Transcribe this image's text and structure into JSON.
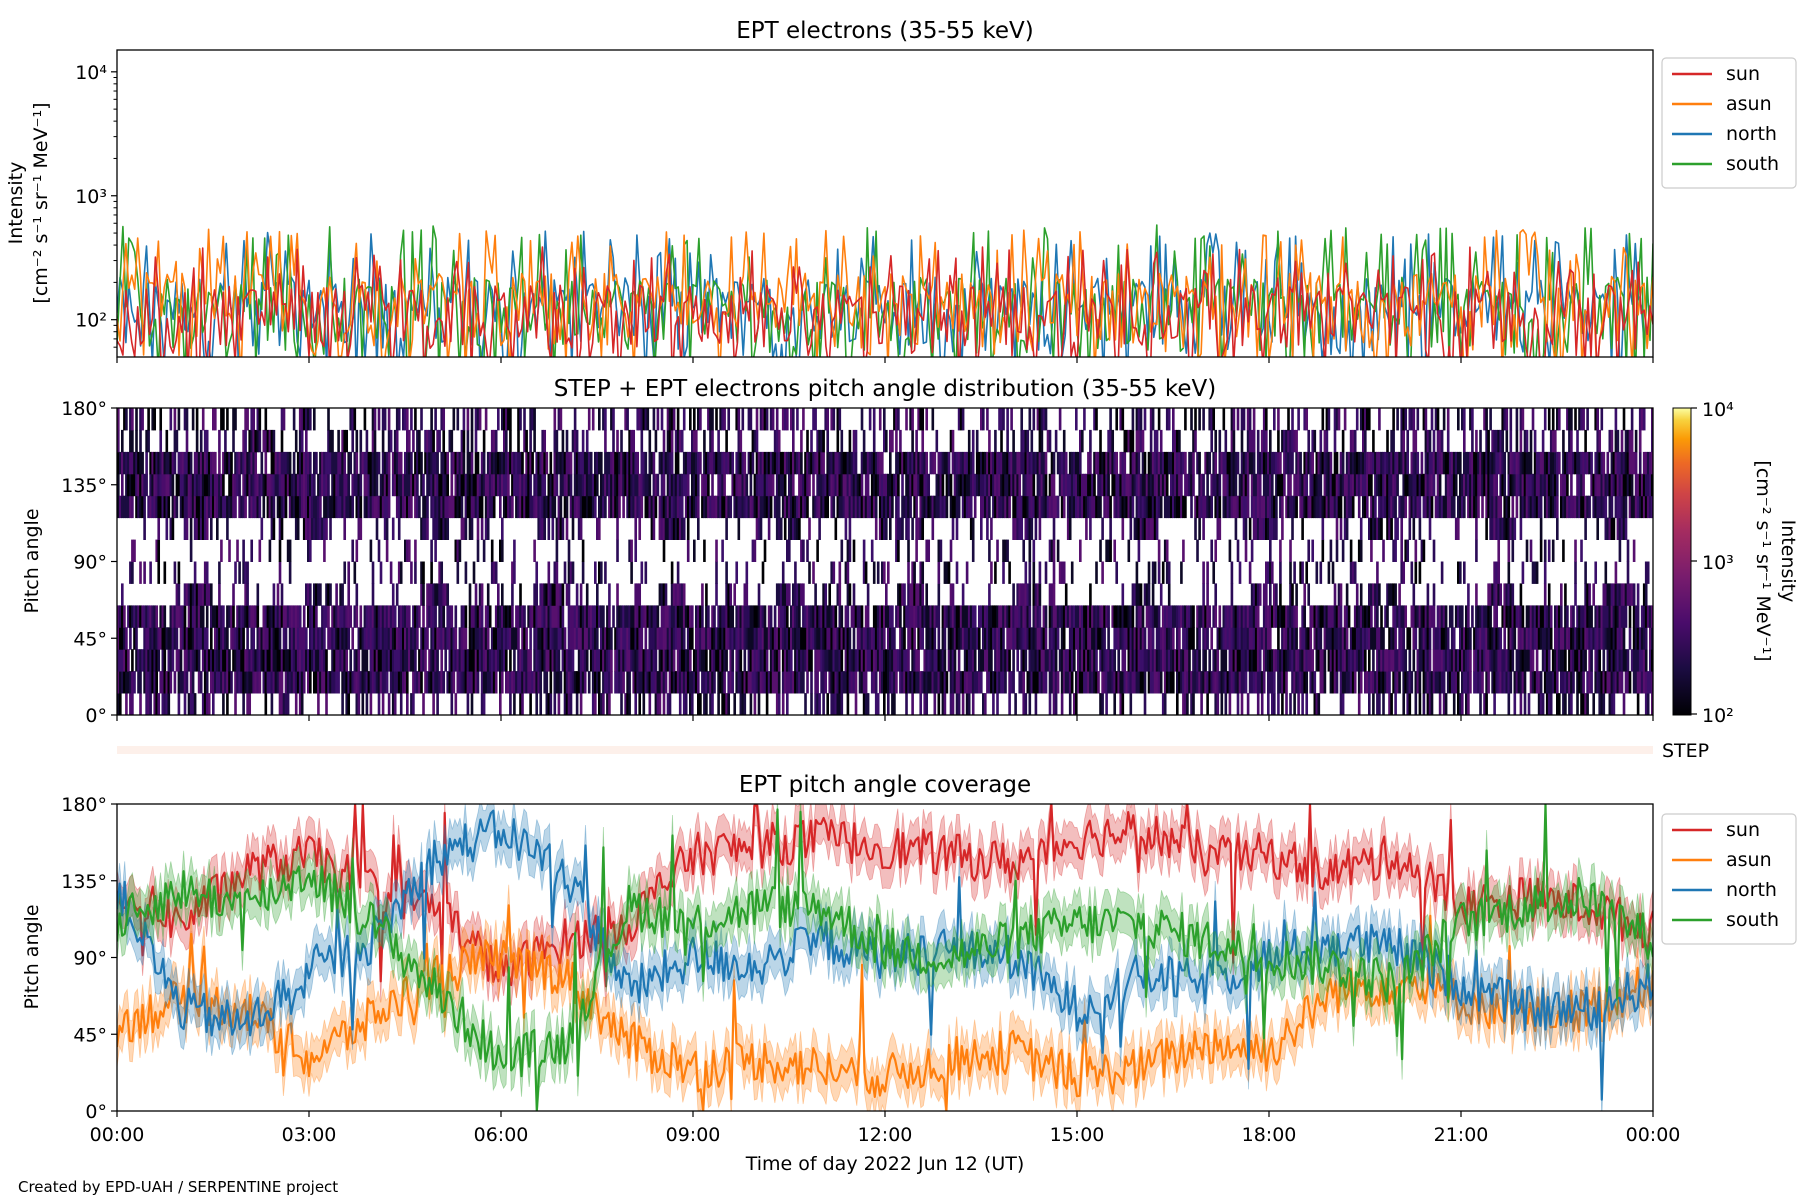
{
  "figure": {
    "credit": "Created by EPD-UAH / SERPENTINE project"
  },
  "chart_data": [
    {
      "type": "line",
      "title": "EPT electrons (35-55 keV)",
      "ylabel_line1": "Intensity",
      "ylabel_line2": "[cm⁻² s⁻¹ sr⁻¹ MeV⁻¹]",
      "yscale": "log",
      "ylim": [
        50,
        15000
      ],
      "yticks": [
        {
          "value": 100,
          "label": "10²"
        },
        {
          "value": 1000,
          "label": "10³"
        },
        {
          "value": 10000,
          "label": "10⁴"
        }
      ],
      "xlim": [
        "2022-06-12 00:00",
        "2022-06-13 00:00"
      ],
      "legend_position": "upper right, outside",
      "series": [
        {
          "name": "north",
          "color": "#1f77b4",
          "median": 110,
          "typical_peak": 400
        },
        {
          "name": "south",
          "color": "#2ca02c",
          "median": 110,
          "typical_peak": 450
        },
        {
          "name": "asun",
          "color": "#ff7f0e",
          "median": 120,
          "typical_peak": 420
        },
        {
          "name": "sun",
          "color": "#d62728",
          "median": 95,
          "typical_peak": 300
        }
      ],
      "legend": [
        {
          "name": "sun",
          "color": "#d62728"
        },
        {
          "name": "asun",
          "color": "#ff7f0e"
        },
        {
          "name": "north",
          "color": "#1f77b4"
        },
        {
          "name": "south",
          "color": "#2ca02c"
        }
      ]
    },
    {
      "type": "heatmap",
      "title": "STEP + EPT electrons pitch angle distribution (35-55 keV)",
      "ylabel": "Pitch angle",
      "ylim": [
        0,
        180
      ],
      "yticks": [
        "0°",
        "45°",
        "90°",
        "135°",
        "180°"
      ],
      "xlim": [
        "2022-06-12 00:00",
        "2022-06-13 00:00"
      ],
      "colorbar": {
        "label_line1": "Intensity",
        "label_line2": "[cm⁻² s⁻¹ sr⁻¹ MeV⁻¹]",
        "scale": "log",
        "range": [
          100,
          10000
        ],
        "ticks": [
          "10²",
          "10³",
          "10⁴"
        ],
        "colormap": "inferno"
      },
      "step_label": "STEP"
    },
    {
      "type": "line",
      "title": "EPT pitch angle coverage",
      "ylabel": "Pitch angle",
      "xlabel": "Time of day 2022 Jun 12 (UT)",
      "ylim": [
        0,
        180
      ],
      "yticks": [
        "0°",
        "45°",
        "90°",
        "135°",
        "180°"
      ],
      "xticks": [
        "00:00",
        "03:00",
        "06:00",
        "09:00",
        "12:00",
        "15:00",
        "18:00",
        "21:00",
        "00:00"
      ],
      "legend_position": "upper right, outside",
      "series": [
        {
          "name": "sun",
          "color": "#d62728",
          "hours": [
            0,
            1,
            2,
            3,
            4,
            5,
            6,
            7,
            8,
            9,
            10,
            11,
            12,
            13,
            14,
            15,
            16,
            17,
            18,
            19,
            20,
            21,
            22,
            23,
            24
          ],
          "pitch_angle": [
            130,
            110,
            140,
            150,
            130,
            120,
            80,
            100,
            110,
            150,
            155,
            160,
            155,
            150,
            145,
            160,
            165,
            150,
            150,
            140,
            150,
            120,
            125,
            120,
            105
          ]
        },
        {
          "name": "asun",
          "color": "#ff7f0e",
          "hours": [
            0,
            1,
            2,
            3,
            4,
            5,
            6,
            7,
            8,
            9,
            10,
            11,
            12,
            13,
            14,
            15,
            16,
            17,
            18,
            19,
            20,
            21,
            22,
            23,
            24
          ],
          "pitch_angle": [
            50,
            65,
            60,
            30,
            55,
            80,
            90,
            80,
            40,
            25,
            30,
            25,
            20,
            30,
            35,
            20,
            25,
            40,
            35,
            70,
            75,
            65,
            55,
            60,
            75
          ]
        },
        {
          "name": "north",
          "color": "#1f77b4",
          "hours": [
            0,
            1,
            2,
            3,
            4,
            5,
            6,
            7,
            8,
            9,
            10,
            11,
            12,
            13,
            14,
            15,
            16,
            17,
            18,
            19,
            20,
            21,
            22,
            23,
            24
          ],
          "pitch_angle": [
            130,
            60,
            50,
            80,
            100,
            150,
            165,
            140,
            70,
            90,
            85,
            100,
            90,
            95,
            90,
            60,
            80,
            75,
            90,
            100,
            95,
            75,
            60,
            60,
            75
          ]
        },
        {
          "name": "south",
          "color": "#2ca02c",
          "hours": [
            0,
            1,
            2,
            3,
            4,
            5,
            6,
            7,
            8,
            9,
            10,
            11,
            12,
            13,
            14,
            15,
            16,
            17,
            18,
            19,
            20,
            21,
            22,
            23,
            24
          ],
          "pitch_angle": [
            110,
            130,
            120,
            140,
            110,
            70,
            30,
            40,
            120,
            110,
            120,
            120,
            95,
            90,
            100,
            110,
            110,
            100,
            90,
            85,
            75,
            110,
            120,
            125,
            100
          ]
        }
      ],
      "legend": [
        {
          "name": "sun",
          "color": "#d62728"
        },
        {
          "name": "asun",
          "color": "#ff7f0e"
        },
        {
          "name": "north",
          "color": "#1f77b4"
        },
        {
          "name": "south",
          "color": "#2ca02c"
        }
      ]
    }
  ]
}
